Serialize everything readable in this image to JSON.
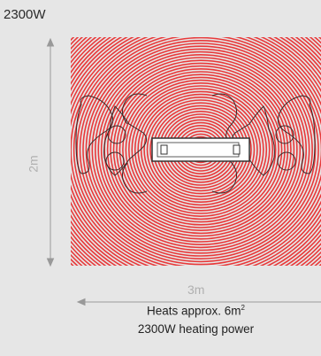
{
  "title": "2300W",
  "dimensions": {
    "height_label": "2m",
    "width_label": "3m"
  },
  "caption": {
    "line1_text": "Heats approx. 6m",
    "line1_sup": "2",
    "line2": "2300W heating power"
  },
  "colors": {
    "background": "#e6e6e6",
    "rings": "#e8393a",
    "heater_fill": "#ffffff",
    "heater_stroke": "#333333",
    "dimension_line": "#999999"
  }
}
